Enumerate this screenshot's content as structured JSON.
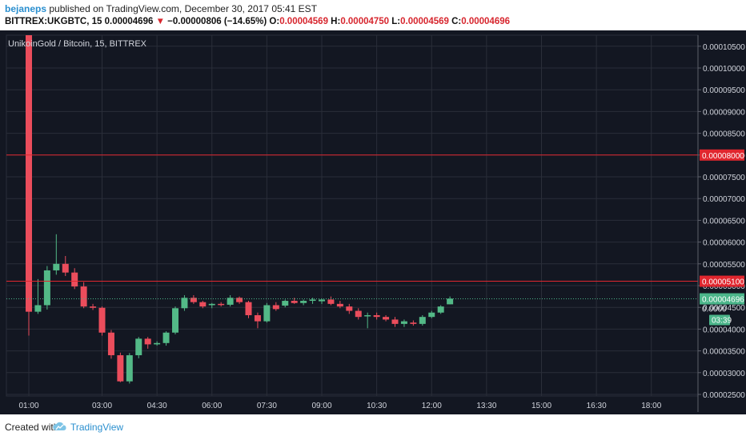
{
  "header": {
    "author": "bejaneps",
    "published": " published on TradingView.com, December 30, 2017 05:41 EST",
    "symbol": "BITTREX:UKGBTC, 15",
    "last": "0.00004696",
    "arrow": "▼",
    "change": "−0.00000806 (−14.65%)",
    "o_label": "O:",
    "o": "0.00004569",
    "h_label": "H:",
    "h": "0.00004750",
    "l_label": "L:",
    "l": "0.00004569",
    "c_label": "C:",
    "c": "0.00004696"
  },
  "footer": {
    "created": "Created with",
    "brand": "TradingView"
  },
  "colors": {
    "background": "#131722",
    "grid": "#2a2e39",
    "up": "#53b987",
    "down": "#eb4d5c",
    "hline": "#e0262e",
    "last_price": "#4bb58a",
    "axis_text": "#d1d4dc"
  },
  "chart_data": {
    "type": "candlestick",
    "title": "UnikoinGold / Bitcoin, 15, BITTREX",
    "interval_minutes": 15,
    "ylim": [
      2.4e-06,
      1.08e-05
    ],
    "y_ticks": [
      "0.00002500",
      "0.00003000",
      "0.00003500",
      "0.00004000",
      "0.00004500",
      "0.00005000",
      "0.00005500",
      "0.00006000",
      "0.00006500",
      "0.00007000",
      "0.00007500",
      "0.00008000",
      "0.00008500",
      "0.00009000",
      "0.00009500",
      "0.00010000",
      "0.00010500"
    ],
    "x_ticks": [
      "01:00",
      "03:00",
      "04:30",
      "06:00",
      "07:30",
      "09:00",
      "10:30",
      "12:00",
      "13:30",
      "15:00",
      "16:30",
      "18:00"
    ],
    "candles": [
      {
        "t": "01:00",
        "o": 0.000108,
        "h": 0.000108,
        "l": 3.85e-05,
        "c": 4.4e-05
      },
      {
        "t": "01:15",
        "o": 4.4e-05,
        "h": 5.15e-05,
        "l": 4.35e-05,
        "c": 4.55e-05
      },
      {
        "t": "01:30",
        "o": 4.55e-05,
        "h": 5.45e-05,
        "l": 4.45e-05,
        "c": 5.35e-05
      },
      {
        "t": "01:45",
        "o": 5.35e-05,
        "h": 6.18e-05,
        "l": 5.25e-05,
        "c": 5.5e-05
      },
      {
        "t": "02:00",
        "o": 5.5e-05,
        "h": 5.68e-05,
        "l": 5.22e-05,
        "c": 5.3e-05
      },
      {
        "t": "02:15",
        "o": 5.3e-05,
        "h": 5.4e-05,
        "l": 4.92e-05,
        "c": 4.98e-05
      },
      {
        "t": "02:30",
        "o": 4.98e-05,
        "h": 5.08e-05,
        "l": 4.48e-05,
        "c": 4.52e-05
      },
      {
        "t": "02:45",
        "o": 4.52e-05,
        "h": 4.58e-05,
        "l": 4.44e-05,
        "c": 4.49e-05
      },
      {
        "t": "03:00",
        "o": 4.49e-05,
        "h": 4.52e-05,
        "l": 3.85e-05,
        "c": 3.92e-05
      },
      {
        "t": "03:15",
        "o": 3.92e-05,
        "h": 3.98e-05,
        "l": 3.32e-05,
        "c": 3.4e-05
      },
      {
        "t": "03:30",
        "o": 3.4e-05,
        "h": 3.46e-05,
        "l": 2.78e-05,
        "c": 2.8e-05
      },
      {
        "t": "03:45",
        "o": 2.8e-05,
        "h": 3.45e-05,
        "l": 2.75e-05,
        "c": 3.4e-05
      },
      {
        "t": "04:00",
        "o": 3.4e-05,
        "h": 3.82e-05,
        "l": 3.33e-05,
        "c": 3.78e-05
      },
      {
        "t": "04:15",
        "o": 3.78e-05,
        "h": 3.82e-05,
        "l": 3.55e-05,
        "c": 3.65e-05
      },
      {
        "t": "04:30",
        "o": 3.65e-05,
        "h": 3.72e-05,
        "l": 3.62e-05,
        "c": 3.68e-05
      },
      {
        "t": "04:45",
        "o": 3.68e-05,
        "h": 3.95e-05,
        "l": 3.62e-05,
        "c": 3.92e-05
      },
      {
        "t": "05:00",
        "o": 3.92e-05,
        "h": 4.52e-05,
        "l": 3.88e-05,
        "c": 4.48e-05
      },
      {
        "t": "05:15",
        "o": 4.48e-05,
        "h": 4.78e-05,
        "l": 4.42e-05,
        "c": 4.72e-05
      },
      {
        "t": "05:30",
        "o": 4.72e-05,
        "h": 4.78e-05,
        "l": 4.58e-05,
        "c": 4.62e-05
      },
      {
        "t": "05:45",
        "o": 4.62e-05,
        "h": 4.65e-05,
        "l": 4.48e-05,
        "c": 4.52e-05
      },
      {
        "t": "06:00",
        "o": 4.55e-05,
        "h": 4.6e-05,
        "l": 4.48e-05,
        "c": 4.58e-05
      },
      {
        "t": "06:15",
        "o": 4.58e-05,
        "h": 4.62e-05,
        "l": 4.52e-05,
        "c": 4.56e-05
      },
      {
        "t": "06:30",
        "o": 4.56e-05,
        "h": 4.78e-05,
        "l": 4.52e-05,
        "c": 4.72e-05
      },
      {
        "t": "06:45",
        "o": 4.72e-05,
        "h": 4.75e-05,
        "l": 4.58e-05,
        "c": 4.62e-05
      },
      {
        "t": "07:00",
        "o": 4.62e-05,
        "h": 4.65e-05,
        "l": 4.25e-05,
        "c": 4.32e-05
      },
      {
        "t": "07:15",
        "o": 4.32e-05,
        "h": 4.38e-05,
        "l": 4.02e-05,
        "c": 4.18e-05
      },
      {
        "t": "07:30",
        "o": 4.18e-05,
        "h": 4.6e-05,
        "l": 4.15e-05,
        "c": 4.55e-05
      },
      {
        "t": "07:45",
        "o": 4.55e-05,
        "h": 4.62e-05,
        "l": 4.42e-05,
        "c": 4.46e-05
      },
      {
        "t": "08:00",
        "o": 4.54e-05,
        "h": 4.68e-05,
        "l": 4.5e-05,
        "c": 4.65e-05
      },
      {
        "t": "08:15",
        "o": 4.65e-05,
        "h": 4.72e-05,
        "l": 4.58e-05,
        "c": 4.6e-05
      },
      {
        "t": "08:30",
        "o": 4.6e-05,
        "h": 4.68e-05,
        "l": 4.55e-05,
        "c": 4.65e-05
      },
      {
        "t": "08:45",
        "o": 4.65e-05,
        "h": 4.72e-05,
        "l": 4.58e-05,
        "c": 4.68e-05
      },
      {
        "t": "09:00",
        "o": 4.64e-05,
        "h": 4.7e-05,
        "l": 4.58e-05,
        "c": 4.68e-05
      },
      {
        "t": "09:15",
        "o": 4.68e-05,
        "h": 4.75e-05,
        "l": 4.55e-05,
        "c": 4.58e-05
      },
      {
        "t": "09:30",
        "o": 4.58e-05,
        "h": 4.65e-05,
        "l": 4.48e-05,
        "c": 4.52e-05
      },
      {
        "t": "09:45",
        "o": 4.52e-05,
        "h": 4.58e-05,
        "l": 4.35e-05,
        "c": 4.42e-05
      },
      {
        "t": "10:00",
        "o": 4.42e-05,
        "h": 4.48e-05,
        "l": 4.22e-05,
        "c": 4.28e-05
      },
      {
        "t": "10:15",
        "o": 4.3e-05,
        "h": 4.38e-05,
        "l": 4.02e-05,
        "c": 4.32e-05
      },
      {
        "t": "10:30",
        "o": 4.32e-05,
        "h": 4.38e-05,
        "l": 4.22e-05,
        "c": 4.28e-05
      },
      {
        "t": "10:45",
        "o": 4.28e-05,
        "h": 4.32e-05,
        "l": 4.18e-05,
        "c": 4.22e-05
      },
      {
        "t": "11:00",
        "o": 4.22e-05,
        "h": 4.28e-05,
        "l": 4.05e-05,
        "c": 4.12e-05
      },
      {
        "t": "11:15",
        "o": 4.12e-05,
        "h": 4.22e-05,
        "l": 4.05e-05,
        "c": 4.18e-05
      },
      {
        "t": "11:30",
        "o": 4.15e-05,
        "h": 4.2e-05,
        "l": 4.08e-05,
        "c": 4.12e-05
      },
      {
        "t": "11:45",
        "o": 4.12e-05,
        "h": 4.32e-05,
        "l": 4.08e-05,
        "c": 4.28e-05
      },
      {
        "t": "12:00",
        "o": 4.28e-05,
        "h": 4.42e-05,
        "l": 4.25e-05,
        "c": 4.38e-05
      },
      {
        "t": "12:15",
        "o": 4.38e-05,
        "h": 4.55e-05,
        "l": 4.35e-05,
        "c": 4.52e-05
      },
      {
        "t": "12:30",
        "o": 4.57e-05,
        "h": 4.75e-05,
        "l": 4.57e-05,
        "c": 4.7e-05
      }
    ],
    "hlines": [
      {
        "value": 8e-05,
        "label": "0.00008000"
      },
      {
        "value": 5.1e-05,
        "label": "0.00005100"
      }
    ],
    "last_price": {
      "value": 4.696e-05,
      "label": "0.00004696",
      "countdown": "03:39"
    },
    "partial_label": "0.0000"
  }
}
